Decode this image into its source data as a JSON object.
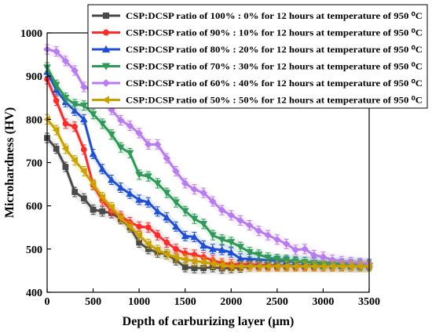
{
  "chart_data": {
    "type": "line",
    "xlabel": "Depth of carburizing layer (µm)",
    "ylabel": "Microhardness (HV)",
    "xlim": [
      0,
      3500
    ],
    "ylim": [
      400,
      1000
    ],
    "xticks": [
      "0",
      "500",
      "1000",
      "1500",
      "2000",
      "2500",
      "3000",
      "3500"
    ],
    "yticks": [
      "400",
      "500",
      "600",
      "700",
      "800",
      "900",
      "1000"
    ],
    "legend_position": "top-right",
    "grid": false,
    "series": [
      {
        "name": "CSP:DCSP ratio of 100% : 0% for 12 hours at temperature of 950 ⁰C",
        "color": "#4a4a4a",
        "marker": "square",
        "x": [
          0,
          100,
          200,
          300,
          400,
          500,
          600,
          700,
          800,
          900,
          1000,
          1100,
          1200,
          1300,
          1400,
          1500,
          1600,
          1700,
          1800,
          1900,
          2000,
          2100,
          2200,
          2300,
          2400,
          2500,
          2600,
          2700,
          2800,
          2900,
          3000,
          3100,
          3200,
          3300,
          3400,
          3500
        ],
        "y": [
          757,
          732,
          690,
          632,
          617,
          591,
          587,
          583,
          569,
          550,
          515,
          500,
          492,
          488,
          474,
          458,
          456,
          456,
          458,
          455,
          456,
          457,
          460,
          460,
          460,
          460,
          460,
          460,
          460,
          460,
          460,
          460,
          460,
          460,
          460,
          460
        ]
      },
      {
        "name": "CSP:DCSP ratio of 90% : 10% for 12 hours at temperature of 950 ⁰C",
        "color": "#ff2a2a",
        "marker": "circle",
        "x": [
          0,
          100,
          200,
          300,
          400,
          500,
          600,
          700,
          800,
          900,
          1000,
          1100,
          1200,
          1300,
          1400,
          1500,
          1600,
          1700,
          1800,
          1900,
          2000,
          2100,
          2200,
          2300,
          2400,
          2500,
          2600,
          2700,
          2800,
          2900,
          3000,
          3100,
          3200,
          3300,
          3400,
          3500
        ],
        "y": [
          893,
          843,
          790,
          783,
          730,
          648,
          612,
          588,
          576,
          562,
          552,
          550,
          532,
          515,
          500,
          490,
          487,
          481,
          474,
          467,
          465,
          465,
          465,
          463,
          463,
          462,
          462,
          462,
          462,
          462,
          461,
          461,
          461,
          460,
          460,
          460
        ]
      },
      {
        "name": "CSP:DCSP ratio of 80% : 20% for 12 hours at temperature of 950 ⁰C",
        "color": "#1f4fd6",
        "marker": "triangle-up",
        "x": [
          0,
          100,
          200,
          300,
          400,
          500,
          600,
          700,
          800,
          900,
          1000,
          1100,
          1200,
          1300,
          1400,
          1500,
          1600,
          1700,
          1800,
          1900,
          2000,
          2100,
          2200,
          2300,
          2400,
          2500,
          2600,
          2700,
          2800,
          2900,
          3000,
          3100,
          3200,
          3300,
          3400,
          3500
        ],
        "y": [
          910,
          868,
          840,
          820,
          800,
          720,
          685,
          660,
          642,
          628,
          614,
          608,
          587,
          573,
          552,
          530,
          528,
          508,
          500,
          498,
          492,
          478,
          477,
          476,
          474,
          473,
          472,
          470,
          470,
          469,
          468,
          467,
          466,
          465,
          465,
          465
        ]
      },
      {
        "name": "CSP:DCSP ratio of 70% : 30% for 12 hours at temperature of 950 ⁰C",
        "color": "#2f9a57",
        "marker": "triangle-down",
        "x": [
          0,
          100,
          200,
          300,
          400,
          500,
          600,
          700,
          800,
          900,
          1000,
          1100,
          1200,
          1300,
          1400,
          1500,
          1600,
          1700,
          1800,
          1900,
          2000,
          2100,
          2200,
          2300,
          2400,
          2500,
          2600,
          2700,
          2800,
          2900,
          3000,
          3100,
          3200,
          3300,
          3400,
          3500
        ],
        "y": [
          920,
          880,
          850,
          835,
          832,
          812,
          790,
          765,
          735,
          722,
          672,
          668,
          652,
          630,
          608,
          588,
          570,
          558,
          532,
          522,
          516,
          505,
          493,
          487,
          480,
          477,
          475,
          472,
          470,
          468,
          466,
          466,
          465,
          464,
          462,
          462
        ]
      },
      {
        "name": "CSP:DCSP ratio of 60% : 40% for 12 hours at temperature of 950 ⁰C",
        "color": "#b87cf2",
        "marker": "diamond",
        "x": [
          0,
          100,
          200,
          300,
          400,
          500,
          600,
          700,
          800,
          900,
          1000,
          1100,
          1200,
          1300,
          1400,
          1500,
          1600,
          1700,
          1800,
          1900,
          2000,
          2100,
          2200,
          2300,
          2400,
          2500,
          2600,
          2700,
          2800,
          2900,
          3000,
          3100,
          3200,
          3300,
          3400,
          3500
        ],
        "y": [
          962,
          957,
          935,
          913,
          875,
          866,
          846,
          822,
          798,
          785,
          768,
          742,
          742,
          710,
          680,
          652,
          638,
          630,
          610,
          590,
          578,
          566,
          555,
          542,
          532,
          522,
          512,
          498,
          500,
          486,
          482,
          475,
          472,
          470,
          468,
          466
        ]
      },
      {
        "name": "CSP:DCSP ratio of 50% : 50% for 12 hours at temperature of 950 ⁰C",
        "color": "#c9a200",
        "marker": "triangle-left",
        "x": [
          0,
          100,
          200,
          300,
          400,
          500,
          600,
          700,
          800,
          900,
          1000,
          1100,
          1200,
          1300,
          1400,
          1500,
          1600,
          1700,
          1800,
          1900,
          2000,
          2100,
          2200,
          2300,
          2400,
          2500,
          2600,
          2700,
          2800,
          2900,
          3000,
          3100,
          3200,
          3300,
          3400,
          3500
        ],
        "y": [
          800,
          775,
          732,
          705,
          680,
          650,
          620,
          597,
          572,
          552,
          532,
          512,
          498,
          488,
          481,
          476,
          472,
          470,
          466,
          463,
          460,
          460,
          460,
          460,
          460,
          460,
          460,
          460,
          460,
          460,
          460,
          460,
          460,
          460,
          460,
          460
        ]
      }
    ]
  }
}
